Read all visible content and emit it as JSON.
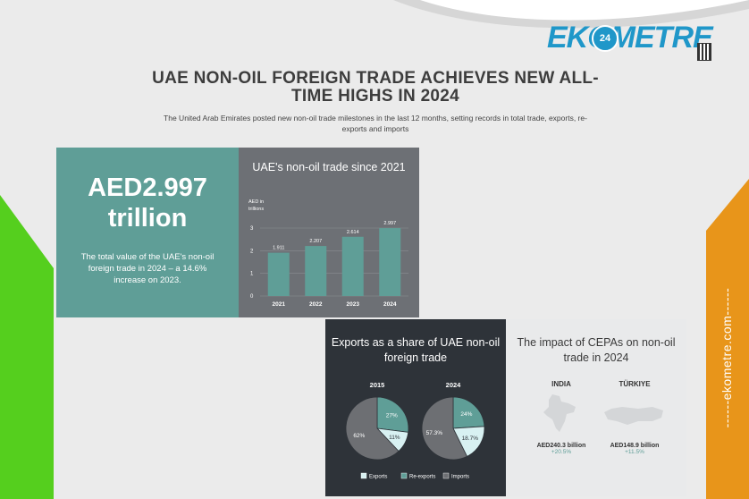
{
  "brand": {
    "logo_text": "EKOMETRE",
    "logo_badge": "24",
    "site": "------ekometre.com------",
    "colors": {
      "logo_blue": "#1f97c9",
      "green": "#55cf1e",
      "orange": "#e8951a",
      "teal": "#5f9e97",
      "gray_panel": "#6d7075",
      "dark_panel": "#2e3339"
    }
  },
  "headline": "UAE NON-OIL FOREIGN TRADE ACHIEVES NEW ALL-TIME HIGHS IN 2024",
  "subhead": "The United Arab Emirates posted new non-oil trade milestones in the last 12 months, setting records in total trade, exports, re-exports and imports",
  "total": {
    "value": "AED2.997 trillion",
    "description": "The total value of the UAE's non-oil foreign trade in 2024 – a 14.6% increase on 2023."
  },
  "exports_title": "Exports as a share of UAE non-oil foreign trade",
  "cepa": {
    "title": "The impact of CEPAs on non-oil trade in 2024",
    "countries": [
      {
        "name": "INDIA",
        "value": "AED240.3 billion",
        "growth": "+20.5%"
      },
      {
        "name": "TÜRKIYE",
        "value": "AED148.9 billion",
        "growth": "+11.5%"
      }
    ]
  },
  "chart_data": [
    {
      "type": "bar",
      "title": "UAE's non-oil trade since 2021",
      "ylabel": "AED in trillions",
      "categories": [
        "2021",
        "2022",
        "2023",
        "2024"
      ],
      "values": [
        1.911,
        2.207,
        2.614,
        2.997
      ],
      "value_labels": [
        "1.911",
        "2.207",
        "2.614",
        "2.997"
      ],
      "yticks": [
        "0",
        "1",
        "2",
        "3"
      ],
      "ylim": [
        0,
        3
      ],
      "grid": true,
      "color": "#5f9e97"
    },
    {
      "type": "pie",
      "title": "Exports as a share of UAE non-oil foreign trade",
      "legend": [
        "Exports",
        "Re-exports",
        "Imports"
      ],
      "legend_position": "bottom",
      "colors": [
        "#d8f1f2",
        "#5f9e97",
        "#6d6f73"
      ],
      "pies": [
        {
          "label": "2015",
          "values": [
            11,
            27,
            62
          ],
          "value_labels": [
            "11%",
            "27%",
            "62%"
          ]
        },
        {
          "label": "2024",
          "values": [
            18.7,
            24,
            57.3
          ],
          "value_labels": [
            "18.7%",
            "24%",
            "57.3%"
          ]
        }
      ]
    }
  ]
}
